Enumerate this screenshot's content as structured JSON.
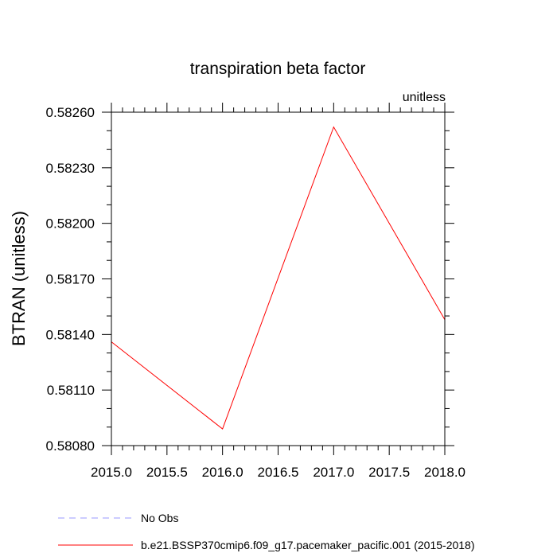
{
  "chart_data": {
    "type": "line",
    "title": "transpiration beta factor",
    "units_label": "unitless",
    "xlabel": "",
    "ylabel": "BTRAN  (unitless)",
    "xlim": [
      2015.0,
      2018.0
    ],
    "ylim": [
      0.5808,
      0.5826
    ],
    "x_ticks": [
      "2015.0",
      "2015.5",
      "2016.0",
      "2016.5",
      "2017.0",
      "2017.5",
      "2018.0"
    ],
    "y_ticks": [
      "0.58080",
      "0.58110",
      "0.58140",
      "0.58170",
      "0.58200",
      "0.58230",
      "0.58260"
    ],
    "grid": false,
    "legend_position": "bottom",
    "series": [
      {
        "name": "No Obs",
        "color": "#9a9aff",
        "dash": "dashed",
        "x": [],
        "y": []
      },
      {
        "name": "b.e21.BSSP370cmip6.f09_g17.pacemaker_pacific.001 (2015-2018)",
        "color": "#ff0000",
        "dash": "solid",
        "x": [
          2015.0,
          2016.0,
          2017.0,
          2018.0
        ],
        "y": [
          0.58136,
          0.58089,
          0.58252,
          0.58148
        ]
      }
    ]
  }
}
